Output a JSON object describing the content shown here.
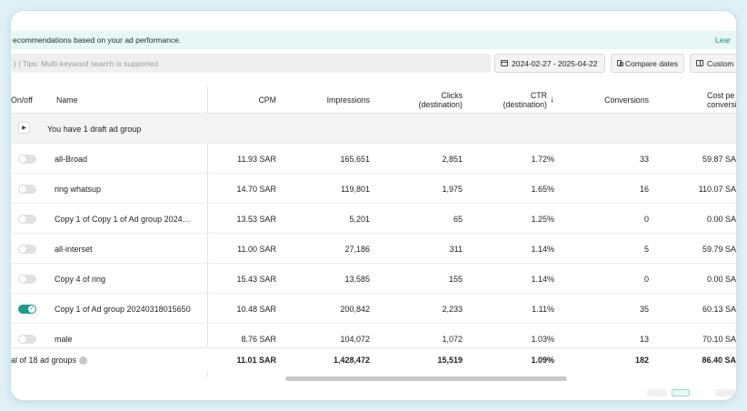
{
  "banner": {
    "text": "ecommendations based on your ad performance.",
    "link": "Lear"
  },
  "toolbar": {
    "search_placeholder": ") | Tips: Multi-keyword search is supported",
    "date_range": "2024-02-27 - 2025-04-22",
    "compare_label": "Compare dates",
    "custom_label": "Custom"
  },
  "table": {
    "headers": {
      "onoff": "On/off",
      "name": "Name",
      "cpm": "CPM",
      "impressions": "Impressions",
      "clicks_1": "Clicks",
      "clicks_2": "(destination)",
      "ctr_1": "CTR",
      "ctr_2": "(destination)",
      "ctr_sort": "↓",
      "conversions": "Conversions",
      "cost_1": "Cost pe",
      "cost_2": "conversio"
    },
    "draft_text": "You have 1 draft ad group",
    "rows": [
      {
        "name": "all-Broad",
        "on": false,
        "cpm": "11.93 SAR",
        "impressions": "165,651",
        "clicks": "2,851",
        "ctr": "1.72%",
        "conversions": "33",
        "cost": "59.87 SA"
      },
      {
        "name": "ring whatsup",
        "on": false,
        "cpm": "14.70 SAR",
        "impressions": "119,801",
        "clicks": "1,975",
        "ctr": "1.65%",
        "conversions": "16",
        "cost": "110.07 SA"
      },
      {
        "name": "Copy 1 of Copy 1 of Ad group 2024…",
        "on": false,
        "cpm": "13.53 SAR",
        "impressions": "5,201",
        "clicks": "65",
        "ctr": "1.25%",
        "conversions": "0",
        "cost": "0.00 SA"
      },
      {
        "name": "all-interset",
        "on": false,
        "cpm": "11.00 SAR",
        "impressions": "27,186",
        "clicks": "311",
        "ctr": "1.14%",
        "conversions": "5",
        "cost": "59.79 SA"
      },
      {
        "name": "Copy 4 of ring",
        "on": false,
        "cpm": "15.43 SAR",
        "impressions": "13,585",
        "clicks": "155",
        "ctr": "1.14%",
        "conversions": "0",
        "cost": "0.00 SA"
      },
      {
        "name": "Copy 1 of Ad group 20240318015650",
        "on": true,
        "cpm": "10.48 SAR",
        "impressions": "200,842",
        "clicks": "2,233",
        "ctr": "1.11%",
        "conversions": "35",
        "cost": "60.13 SA"
      },
      {
        "name": "male",
        "on": false,
        "cpm": "8.76 SAR",
        "impressions": "104,072",
        "clicks": "1,072",
        "ctr": "1.03%",
        "conversions": "13",
        "cost": "70.10 SA"
      }
    ],
    "totals": {
      "label": "al of 18 ad groups",
      "cpm": "11.01 SAR",
      "impressions": "1,428,472",
      "clicks": "15,519",
      "ctr": "1.09%",
      "conversions": "182",
      "cost": "86.40 SA"
    }
  },
  "colors": {
    "accent": "#1a9e92",
    "banner_bg": "#e6f7f4",
    "page_bg": "#dff0f6"
  }
}
